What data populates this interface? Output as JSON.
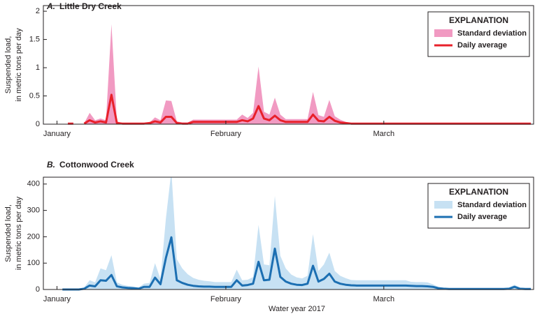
{
  "chart_data": [
    {
      "type": "band-line",
      "panel": "A.",
      "title": "Little Dry Creek",
      "y_label": [
        "Suspended load,",
        "in metric tons per day"
      ],
      "categories": [
        null,
        null,
        "January",
        null,
        null,
        null,
        null,
        null,
        null,
        null,
        null,
        null,
        null,
        null,
        null,
        null,
        null,
        null,
        null,
        null,
        null,
        null,
        null,
        null,
        null,
        null,
        null,
        null,
        null,
        null,
        null,
        null,
        null,
        "February",
        null,
        null,
        null,
        null,
        null,
        null,
        null,
        null,
        null,
        null,
        null,
        null,
        null,
        null,
        null,
        null,
        null,
        null,
        null,
        null,
        null,
        null,
        null,
        null,
        null,
        null,
        null,
        null,
        "March",
        null,
        null,
        null,
        null,
        null,
        null,
        null,
        null,
        null,
        null,
        null,
        null,
        null,
        null,
        null,
        null,
        null,
        null,
        null,
        null,
        null,
        null,
        null,
        null,
        null,
        null,
        null
      ],
      "ylim": [
        0,
        2.1
      ],
      "yticks": [
        0,
        0.5,
        1,
        1.5,
        2
      ],
      "legend_title": "EXPLANATION",
      "legend": "upper right",
      "series": [
        {
          "name": "Standard deviation",
          "color": "#f19ac2",
          "values": [
            null,
            null,
            null,
            null,
            0.01,
            0.01,
            null,
            0.01,
            0.13,
            0.04,
            0.05,
            0.04,
            1.25,
            0.03,
            0.01,
            0.01,
            0.01,
            0.01,
            0.01,
            0.01,
            0.07,
            0.04,
            0.29,
            0.28,
            0.03,
            0.02,
            0.02,
            0.04,
            0.04,
            0.04,
            0.04,
            0.04,
            0.04,
            0.04,
            0.04,
            0.04,
            0.1,
            0.06,
            0.1,
            0.7,
            0.12,
            0.1,
            0.32,
            0.1,
            0.05,
            0.05,
            0.05,
            0.05,
            0.05,
            0.4,
            0.1,
            0.08,
            0.3,
            0.08,
            0.05,
            0.02,
            0.01,
            0.01,
            0.01,
            0.01,
            0.01,
            0.01,
            0.01,
            0.01,
            0.01,
            0.01,
            0.01,
            0.01,
            0.01,
            0.01,
            0.01,
            0.01,
            0.01,
            0.01,
            0.01,
            0.01,
            0.01,
            0.01,
            0.01,
            0.01,
            0.01,
            0.01,
            0.01,
            0.01,
            0.01,
            0.01,
            0.01,
            0.01,
            0.01,
            0.01
          ]
        },
        {
          "name": "Daily average",
          "color": "#e8202a",
          "values": [
            null,
            null,
            null,
            null,
            0.01,
            0.01,
            null,
            0.01,
            0.07,
            0.03,
            0.05,
            0.03,
            0.52,
            0.02,
            0.01,
            0.01,
            0.01,
            0.01,
            0.01,
            0.02,
            0.05,
            0.03,
            0.13,
            0.13,
            0.02,
            0.01,
            0.01,
            0.04,
            0.04,
            0.04,
            0.04,
            0.04,
            0.04,
            0.04,
            0.04,
            0.04,
            0.07,
            0.05,
            0.1,
            0.32,
            0.1,
            0.07,
            0.15,
            0.07,
            0.04,
            0.04,
            0.04,
            0.04,
            0.04,
            0.17,
            0.06,
            0.05,
            0.13,
            0.06,
            0.03,
            0.02,
            0.01,
            0.01,
            0.01,
            0.01,
            0.01,
            0.01,
            0.01,
            0.01,
            0.01,
            0.01,
            0.01,
            0.01,
            0.01,
            0.01,
            0.01,
            0.01,
            0.01,
            0.01,
            0.01,
            0.01,
            0.01,
            0.01,
            0.01,
            0.01,
            0.01,
            0.01,
            0.01,
            0.01,
            0.01,
            0.01,
            0.01,
            0.01,
            0.01,
            0.01
          ]
        }
      ]
    },
    {
      "type": "band-line",
      "panel": "B.",
      "title": "Cottonwood Creek",
      "y_label": [
        "Suspended load,",
        "in metric tons per day"
      ],
      "x_label": "Water year 2017",
      "categories": [
        null,
        null,
        "January",
        null,
        null,
        null,
        null,
        null,
        null,
        null,
        null,
        null,
        null,
        null,
        null,
        null,
        null,
        null,
        null,
        null,
        null,
        null,
        null,
        null,
        null,
        null,
        null,
        null,
        null,
        null,
        null,
        null,
        null,
        "February",
        null,
        null,
        null,
        null,
        null,
        null,
        null,
        null,
        null,
        null,
        null,
        null,
        null,
        null,
        null,
        null,
        null,
        null,
        null,
        null,
        null,
        null,
        null,
        null,
        null,
        null,
        null,
        null,
        "March",
        null,
        null,
        null,
        null,
        null,
        null,
        null,
        null,
        null,
        null,
        null,
        null,
        null,
        null,
        null,
        null,
        null,
        null,
        null,
        null,
        null,
        null,
        null,
        null,
        null,
        null,
        null
      ],
      "ylim": [
        0,
        426
      ],
      "yticks": [
        0,
        100,
        200,
        300,
        400
      ],
      "legend_title": "EXPLANATION",
      "legend": "upper right",
      "series": [
        {
          "name": "Standard deviation",
          "color": "#c7e1f3",
          "values": [
            null,
            null,
            null,
            0,
            0,
            0,
            0,
            5,
            20,
            15,
            45,
            40,
            75,
            15,
            10,
            8,
            6,
            5,
            12,
            15,
            55,
            20,
            150,
            252,
            80,
            55,
            40,
            30,
            25,
            22,
            20,
            18,
            18,
            18,
            18,
            40,
            20,
            20,
            25,
            140,
            60,
            55,
            200,
            80,
            50,
            35,
            28,
            25,
            30,
            120,
            40,
            55,
            80,
            40,
            30,
            25,
            20,
            20,
            20,
            20,
            20,
            20,
            20,
            20,
            20,
            20,
            20,
            15,
            15,
            15,
            15,
            10,
            5,
            3,
            3,
            3,
            3,
            3,
            3,
            3,
            3,
            3,
            3,
            3,
            3,
            5,
            8,
            4,
            3,
            3
          ]
        },
        {
          "name": "Daily average",
          "color": "#1c6fb2",
          "values": [
            null,
            null,
            null,
            0,
            0,
            0,
            0,
            3,
            15,
            12,
            35,
            33,
            55,
            12,
            8,
            6,
            5,
            3,
            10,
            10,
            45,
            20,
            120,
            198,
            35,
            25,
            18,
            14,
            12,
            11,
            11,
            10,
            10,
            10,
            10,
            35,
            15,
            17,
            22,
            105,
            35,
            37,
            155,
            48,
            30,
            22,
            18,
            17,
            22,
            90,
            30,
            40,
            60,
            30,
            22,
            18,
            16,
            15,
            15,
            15,
            15,
            15,
            15,
            15,
            15,
            15,
            15,
            14,
            13,
            13,
            12,
            10,
            5,
            3,
            2,
            2,
            2,
            2,
            2,
            2,
            2,
            2,
            2,
            2,
            2,
            3,
            10,
            3,
            2,
            2
          ]
        }
      ]
    }
  ]
}
